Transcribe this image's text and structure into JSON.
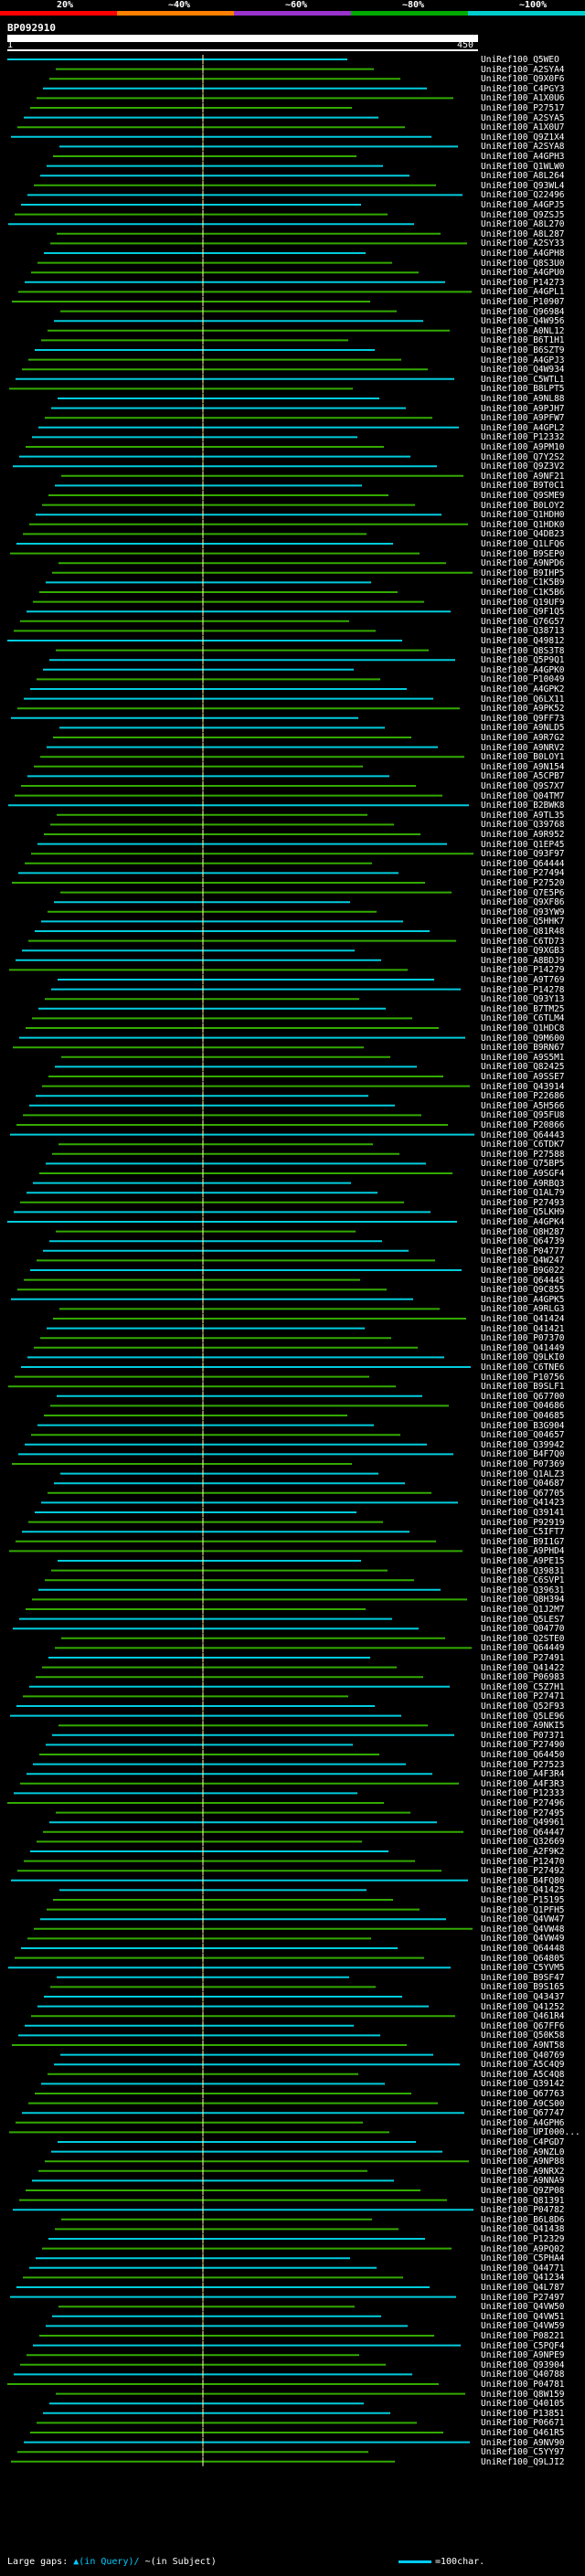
{
  "query_id": "BP092910",
  "axis": {
    "start": "1",
    "end": "450"
  },
  "percent_legend": [
    "20%",
    "~40%",
    "~60%",
    "~80%",
    "~100%"
  ],
  "legend_colors": [
    "#ff0000",
    "#ff8000",
    "#9933cc",
    "#00aa00",
    "#00cccc"
  ],
  "hit_colors": {
    "cyan": "#00ccdd",
    "green": "#33aa00"
  },
  "footer": {
    "large_gaps": "Large gaps:",
    "marker_q": "▲(in Query)/",
    "marker_s": "~(in Subject)",
    "scale_label": "=100char."
  },
  "hits": [
    "UniRef100_Q5WEO",
    "UniRef100_A2SYA4",
    "UniRef100_Q9X0F6",
    "UniRef100_C4PGY3",
    "UniRef100_A1X0U6",
    "UniRef100_P27517",
    "UniRef100_A2SYA5",
    "UniRef100_A1X0U7",
    "UniRef100_Q9Z1X4",
    "UniRef100_A2SYA8",
    "UniRef100_A4GPH3",
    "UniRef100_Q1WLW0",
    "UniRef100_A8L264",
    "UniRef100_Q93WL4",
    "UniRef100_Q22496",
    "UniRef100_A4GPJ5",
    "UniRef100_Q9ZSJ5",
    "UniRef100_A8L270",
    "UniRef100_A8L287",
    "UniRef100_A2SY33",
    "UniRef100_A4GPH8",
    "UniRef100_Q8S3U0",
    "UniRef100_A4GPU0",
    "UniRef100_P14273",
    "UniRef100_A4GPL1",
    "UniRef100_P10907",
    "UniRef100_Q96984",
    "UniRef100_Q4W956",
    "UniRef100_A0NL12",
    "UniRef100_B6T1H1",
    "UniRef100_B6SZT9",
    "UniRef100_A4GPJ3",
    "UniRef100_Q4W934",
    "UniRef100_C5WTL1",
    "UniRef100_B8LPT5",
    "UniRef100_A9NL88",
    "UniRef100_A9PJH7",
    "UniRef100_A9PFW7",
    "UniRef100_A4GPL2",
    "UniRef100_P12332",
    "UniRef100_A9PM10",
    "UniRef100_Q7Y2S2",
    "UniRef100_Q9Z3V2",
    "UniRef100_A9NF21",
    "UniRef100_B9T0C1",
    "UniRef100_Q9SME9",
    "UniRef100_B0LOY2",
    "UniRef100_Q1HDH0",
    "UniRef100_Q1HDK0",
    "UniRef100_Q4DB23",
    "UniRef100_Q1LFQ6",
    "UniRef100_B9SEP0",
    "UniRef100_A9NPD6",
    "UniRef100_B9IHP5",
    "UniRef100_C1K5B9",
    "UniRef100_C1K5B6",
    "UniRef100_Q19UF9",
    "UniRef100_Q9F1Q5",
    "UniRef100_Q76G57",
    "UniRef100_Q38713",
    "UniRef100_Q49812",
    "UniRef100_Q8S3T8",
    "UniRef100_Q5P9Q1",
    "UniRef100_A4GPK0",
    "UniRef100_P10049",
    "UniRef100_A4GPK2",
    "UniRef100_Q6LX11",
    "UniRef100_A9PK52",
    "UniRef100_Q9FF73",
    "UniRef100_A9NLD5",
    "UniRef100_A9R7G2",
    "UniRef100_A9NRV2",
    "UniRef100_B0LOY1",
    "UniRef100_A9N154",
    "UniRef100_A5CPB7",
    "UniRef100_Q9S7X7",
    "UniRef100_Q04TM7",
    "UniRef100_B2BWK8",
    "UniRef100_A9TL35",
    "UniRef100_Q39768",
    "UniRef100_A9R952",
    "UniRef100_Q1EP45",
    "UniRef100_Q93F97",
    "UniRef100_Q64444",
    "UniRef100_P27494",
    "UniRef100_P27520",
    "UniRef100_Q7E5P6",
    "UniRef100_Q9XF86",
    "UniRef100_Q93YW9",
    "UniRef100_Q5HHK7",
    "UniRef100_Q81R48",
    "UniRef100_C6TD73",
    "UniRef100_Q9XGB3",
    "UniRef100_A8BDJ9",
    "UniRef100_P14279",
    "UniRef100_A9T769",
    "UniRef100_P14278",
    "UniRef100_Q93Y13",
    "UniRef100_B7TM25",
    "UniRef100_C6TLM4",
    "UniRef100_Q1HDC8",
    "UniRef100_Q9M600",
    "UniRef100_B9RN67",
    "UniRef100_A9S5M1",
    "UniRef100_Q82425",
    "UniRef100_A9SSE7",
    "UniRef100_Q43914",
    "UniRef100_P22686",
    "UniRef100_A5H566",
    "UniRef100_Q95FU8",
    "UniRef100_P20866",
    "UniRef100_Q64443",
    "UniRef100_C6TDK7",
    "UniRef100_P27588",
    "UniRef100_Q75BP5",
    "UniRef100_A9SGF4",
    "UniRef100_A9RBQ3",
    "UniRef100_Q1AL79",
    "UniRef100_P27493",
    "UniRef100_Q5LKH9",
    "UniRef100_A4GPK4",
    "UniRef100_Q8H287",
    "UniRef100_Q64739",
    "UniRef100_P04777",
    "UniRef100_Q4W247",
    "UniRef100_B9G022",
    "UniRef100_Q64445",
    "UniRef100_Q9C855",
    "UniRef100_A4GPK5",
    "UniRef100_A9RLG3",
    "UniRef100_Q41424",
    "UniRef100_Q41421",
    "UniRef100_P07370",
    "UniRef100_Q41449",
    "UniRef100_Q9LKI0",
    "UniRef100_C6TNE6",
    "UniRef100_P10756",
    "UniRef100_B9SLF1",
    "UniRef100_Q67700",
    "UniRef100_Q04686",
    "UniRef100_Q04685",
    "UniRef100_B3G904",
    "UniRef100_Q04657",
    "UniRef100_Q39942",
    "UniRef100_B4F7Q0",
    "UniRef100_P07369",
    "UniRef100_Q1ALZ3",
    "UniRef100_Q04687",
    "UniRef100_Q67705",
    "UniRef100_Q41423",
    "UniRef100_Q39141",
    "UniRef100_P92919",
    "UniRef100_C5IFT7",
    "UniRef100_B9I1G7",
    "UniRef100_A9PHD4",
    "UniRef100_A9PE15",
    "UniRef100_Q39831",
    "UniRef100_C6SVP1",
    "UniRef100_Q39631",
    "UniRef100_Q8H394",
    "UniRef100_Q1J2M7",
    "UniRef100_Q5LES7",
    "UniRef100_Q04770",
    "UniRef100_Q2STE0",
    "UniRef100_Q64449",
    "UniRef100_P27491",
    "UniRef100_Q41422",
    "UniRef100_P06983",
    "UniRef100_C5Z7H1",
    "UniRef100_P27471",
    "UniRef100_Q52F93",
    "UniRef100_Q5LE96",
    "UniRef100_A9NKI5",
    "UniRef100_P07371",
    "UniRef100_P27490",
    "UniRef100_Q64450",
    "UniRef100_P27523",
    "UniRef100_A4F3R4",
    "UniRef100_A4F3R3",
    "UniRef100_P12333",
    "UniRef100_P27496",
    "UniRef100_P27495",
    "UniRef100_Q49961",
    "UniRef100_Q64447",
    "UniRef100_Q32669",
    "UniRef100_A2F9K2",
    "UniRef100_P12470",
    "UniRef100_P27492",
    "UniRef100_B4FQ80",
    "UniRef100_Q41425",
    "UniRef100_P15195",
    "UniRef100_Q1PFH5",
    "UniRef100_Q4VW47",
    "UniRef100_Q4VW48",
    "UniRef100_Q4VW49",
    "UniRef100_Q64448",
    "UniRef100_Q64805",
    "UniRef100_C5YVM5",
    "UniRef100_B9SF47",
    "UniRef100_B9S165",
    "UniRef100_Q43437",
    "UniRef100_Q41252",
    "UniRef100_Q461R4",
    "UniRef100_Q67FF6",
    "UniRef100_Q50K58",
    "UniRef100_A9NT58",
    "UniRef100_Q40769",
    "UniRef100_A5C4Q9",
    "UniRef100_A5C4Q8",
    "UniRef100_Q39142",
    "UniRef100_Q67763",
    "UniRef100_A9CS00",
    "UniRef100_Q67747",
    "UniRef100_A4GPH6",
    "UniRef100_UPI000...",
    "UniRef100_C4PGD7",
    "UniRef100_A9NZL0",
    "UniRef100_A9NP88",
    "UniRef100_A9NRX2",
    "UniRef100_A9NNA9",
    "UniRef100_Q9ZP08",
    "UniRef100_Q81391",
    "UniRef100_P04782",
    "UniRef100_B6L8D6",
    "UniRef100_Q41438",
    "UniRef100_P12329",
    "UniRef100_A9PQ02",
    "UniRef100_C5PHA4",
    "UniRef100_Q44771",
    "UniRef100_Q41234",
    "UniRef100_Q4L787",
    "UniRef100_P27497",
    "UniRef100_Q4VW50",
    "UniRef100_Q4VW51",
    "UniRef100_Q4VW59",
    "UniRef100_P08221",
    "UniRef100_C5PQF4",
    "UniRef100_A9NPE9",
    "UniRef100_Q93904",
    "UniRef100_Q40788",
    "UniRef100_P04781",
    "UniRef100_Q8W159",
    "UniRef100_Q40105",
    "UniRef100_P13851",
    "UniRef100_P06671",
    "UniRef100_Q461R5",
    "UniRef100_A9NV90",
    "UniRef100_C5YY97",
    "UniRef100_Q9LJI2"
  ]
}
